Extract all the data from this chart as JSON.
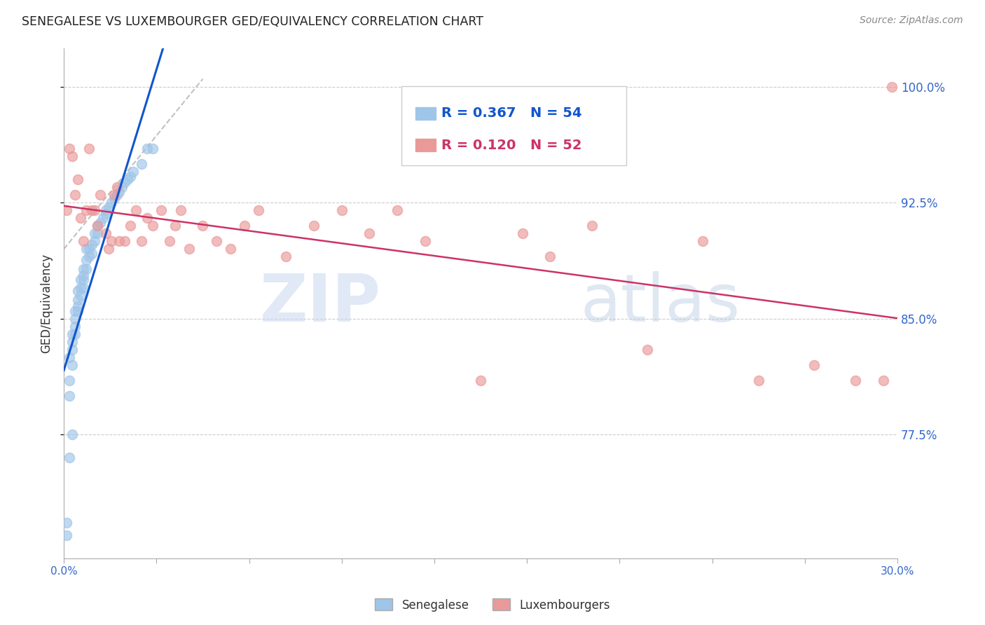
{
  "title": "SENEGALESE VS LUXEMBOURGER GED/EQUIVALENCY CORRELATION CHART",
  "source": "Source: ZipAtlas.com",
  "ylabel": "GED/Equivalency",
  "xlim": [
    0.0,
    0.3
  ],
  "ylim": [
    0.695,
    1.025
  ],
  "ytick_vals": [
    0.775,
    0.85,
    0.925,
    1.0
  ],
  "ytick_labels": [
    "77.5%",
    "85.0%",
    "92.5%",
    "100.0%"
  ],
  "blue_color": "#9fc5e8",
  "pink_color": "#ea9999",
  "blue_line_color": "#1155cc",
  "pink_line_color": "#cc3366",
  "watermark_zip": "ZIP",
  "watermark_atlas": "atlas",
  "blue_scatter_x": [
    0.001,
    0.001,
    0.002,
    0.002,
    0.002,
    0.002,
    0.003,
    0.003,
    0.003,
    0.003,
    0.003,
    0.004,
    0.004,
    0.004,
    0.004,
    0.005,
    0.005,
    0.005,
    0.005,
    0.006,
    0.006,
    0.006,
    0.007,
    0.007,
    0.007,
    0.007,
    0.008,
    0.008,
    0.008,
    0.009,
    0.009,
    0.01,
    0.01,
    0.011,
    0.011,
    0.012,
    0.012,
    0.013,
    0.014,
    0.015,
    0.015,
    0.016,
    0.017,
    0.018,
    0.019,
    0.02,
    0.021,
    0.022,
    0.023,
    0.024,
    0.025,
    0.028,
    0.03,
    0.032
  ],
  "blue_scatter_y": [
    0.71,
    0.718,
    0.76,
    0.8,
    0.81,
    0.825,
    0.82,
    0.83,
    0.835,
    0.84,
    0.775,
    0.84,
    0.845,
    0.85,
    0.855,
    0.855,
    0.858,
    0.862,
    0.868,
    0.865,
    0.87,
    0.875,
    0.87,
    0.875,
    0.878,
    0.882,
    0.882,
    0.888,
    0.895,
    0.89,
    0.895,
    0.892,
    0.898,
    0.9,
    0.905,
    0.905,
    0.91,
    0.912,
    0.915,
    0.918,
    0.92,
    0.922,
    0.925,
    0.928,
    0.93,
    0.932,
    0.935,
    0.938,
    0.94,
    0.942,
    0.945,
    0.95,
    0.96,
    0.96
  ],
  "pink_scatter_x": [
    0.001,
    0.002,
    0.003,
    0.004,
    0.005,
    0.006,
    0.007,
    0.008,
    0.009,
    0.01,
    0.011,
    0.012,
    0.013,
    0.015,
    0.016,
    0.017,
    0.018,
    0.019,
    0.02,
    0.022,
    0.024,
    0.026,
    0.028,
    0.03,
    0.032,
    0.035,
    0.038,
    0.04,
    0.042,
    0.045,
    0.05,
    0.055,
    0.06,
    0.065,
    0.07,
    0.08,
    0.09,
    0.1,
    0.11,
    0.12,
    0.13,
    0.15,
    0.165,
    0.175,
    0.19,
    0.21,
    0.23,
    0.25,
    0.27,
    0.285,
    0.295,
    0.298
  ],
  "pink_scatter_y": [
    0.92,
    0.96,
    0.955,
    0.93,
    0.94,
    0.915,
    0.9,
    0.92,
    0.96,
    0.92,
    0.92,
    0.91,
    0.93,
    0.905,
    0.895,
    0.9,
    0.93,
    0.935,
    0.9,
    0.9,
    0.91,
    0.92,
    0.9,
    0.915,
    0.91,
    0.92,
    0.9,
    0.91,
    0.92,
    0.895,
    0.91,
    0.9,
    0.895,
    0.91,
    0.92,
    0.89,
    0.91,
    0.92,
    0.905,
    0.92,
    0.9,
    0.81,
    0.905,
    0.89,
    0.91,
    0.83,
    0.9,
    0.81,
    0.82,
    0.81,
    0.81,
    1.0
  ],
  "legend_r_blue": "R = 0.367",
  "legend_n_blue": "N = 54",
  "legend_r_pink": "R = 0.120",
  "legend_n_pink": "N = 52"
}
